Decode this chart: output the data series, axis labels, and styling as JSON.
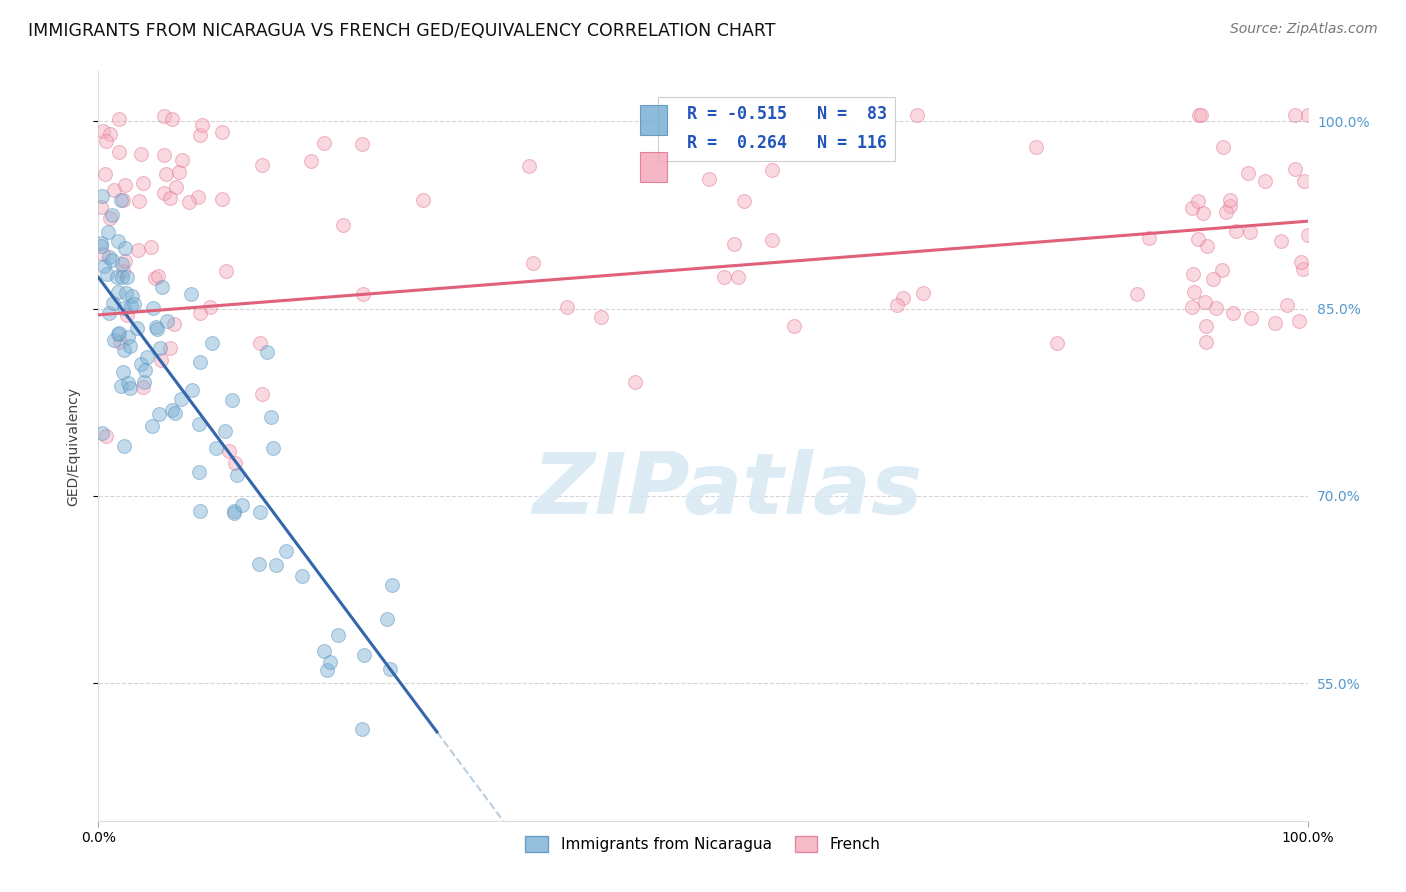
{
  "title": "IMMIGRANTS FROM NICARAGUA VS FRENCH GED/EQUIVALENCY CORRELATION CHART",
  "source": "Source: ZipAtlas.com",
  "ylabel": "GED/Equivalency",
  "xmin": 0.0,
  "xmax": 1.0,
  "ymin": 0.44,
  "ymax": 1.04,
  "yticks": [
    0.55,
    0.7,
    0.85,
    1.0
  ],
  "ytick_labels": [
    "55.0%",
    "70.0%",
    "85.0%",
    "100.0%"
  ],
  "xtick_left": "0.0%",
  "xtick_right": "100.0%",
  "series1_color": "#7BAFD4",
  "series1_edge": "#5590BB",
  "series2_color": "#F4AABB",
  "series2_edge": "#E07090",
  "series1_label": "Immigrants from Nicaragua",
  "series2_label": "French",
  "series1_R": -0.515,
  "series1_N": 83,
  "series2_R": 0.264,
  "series2_N": 116,
  "line1_color": "#3366AA",
  "line1_solid_end": 0.28,
  "line1_slope": -1.3,
  "line1_intercept": 0.875,
  "line1_dashed_end": 0.65,
  "line2_color": "#E0607A",
  "line2_slope": 0.075,
  "line2_intercept": 0.845,
  "dashed_color": "#BBCCDD",
  "watermark_text": "ZIPatlas",
  "watermark_color": "#D8E8F4",
  "watermark_alpha": 0.85,
  "background_color": "#FFFFFF",
  "title_fontsize": 12.5,
  "source_fontsize": 10,
  "ylabel_fontsize": 10,
  "tick_fontsize": 10,
  "right_tick_color": "#5599CC",
  "legend_fontsize": 12,
  "scatter_alpha": 0.45,
  "scatter_size": 100,
  "grid_color": "#CCCCCC",
  "grid_alpha": 0.8,
  "legend_box_color": "#DDDDDD"
}
